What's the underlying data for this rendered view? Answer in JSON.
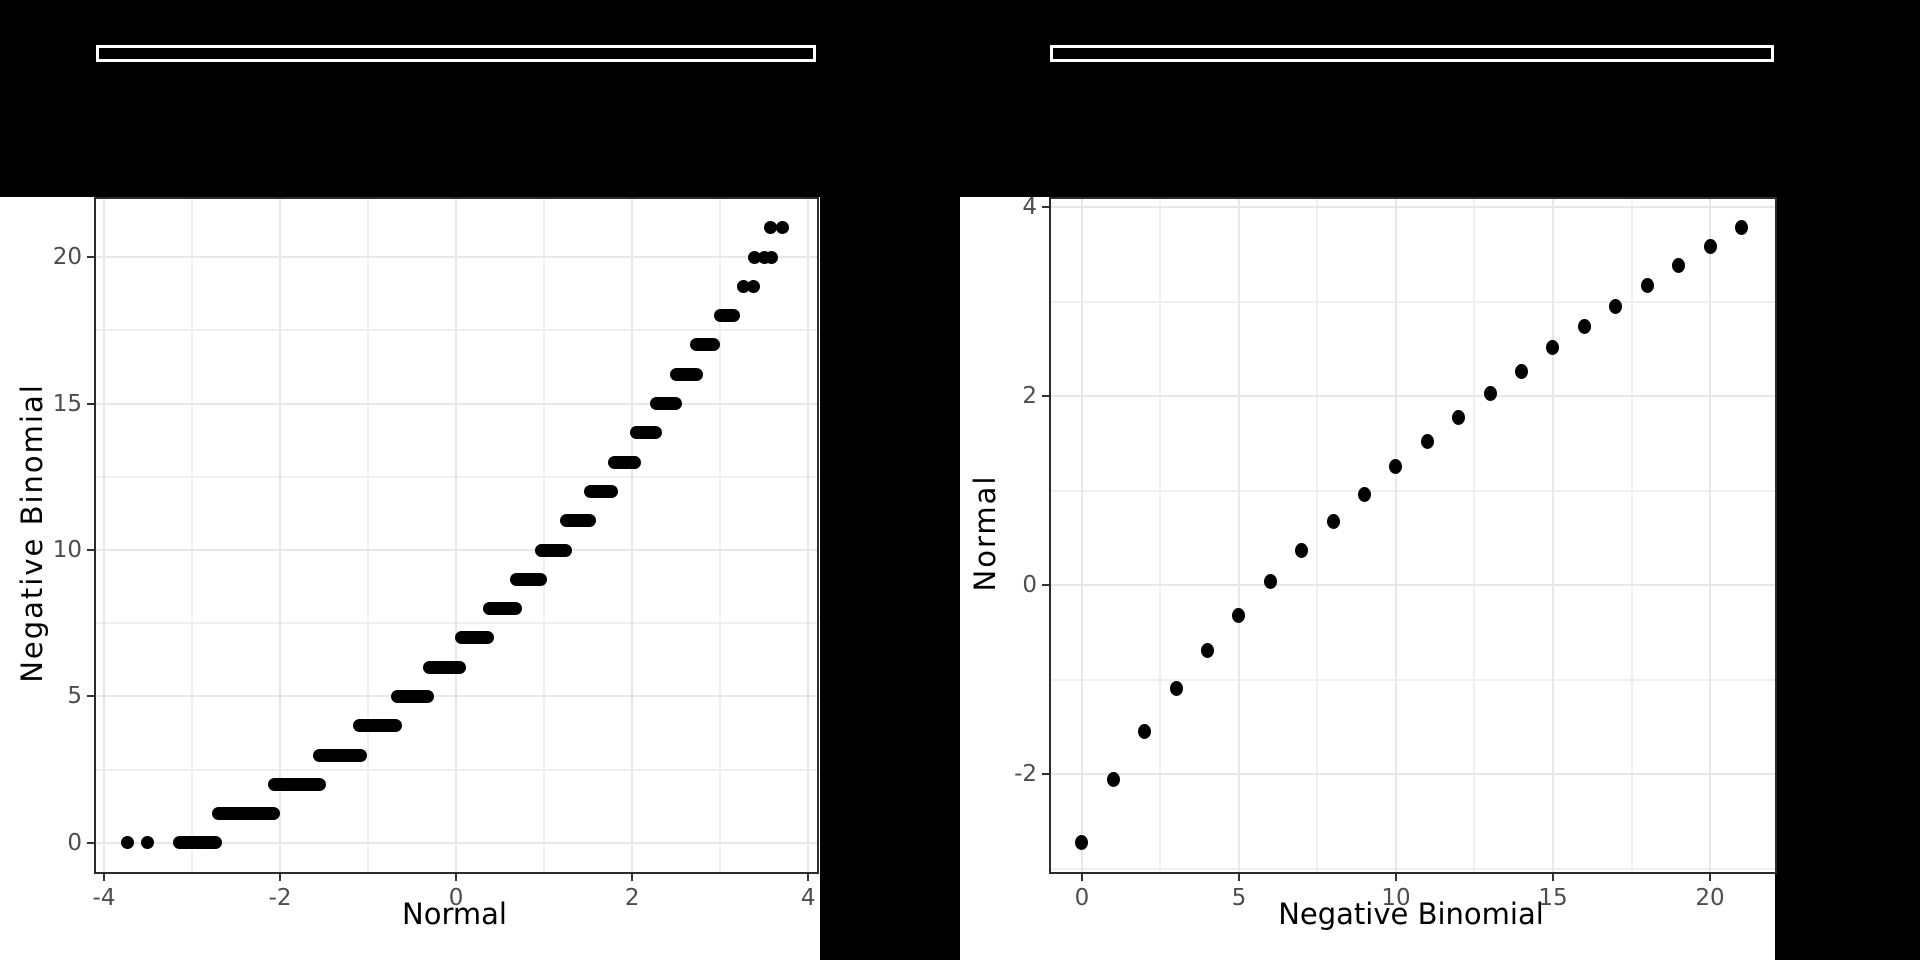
{
  "page": {
    "background": "#000000",
    "description": "Two quantile-quantile plots comparing a Normal distribution and a Negative Binomial distribution, rendered on a black background with an empty white-outlined box above each plot"
  },
  "top_boxes": {
    "left_box_text": "",
    "right_box_text": ""
  },
  "colors": {
    "figure_background": "#ffffff",
    "point_color": "#000000",
    "grid_major": "#e7e7e7",
    "grid_minor": "#efefef",
    "panel_border": "#2b2b2b",
    "tick_mark": "#333333",
    "tick_label": "#4d4d4d",
    "axis_title": "#000000",
    "box_border": "#ffffff"
  },
  "chart_data": [
    {
      "type": "scatter",
      "title": "",
      "xlabel": "Normal",
      "ylabel": "Negative Binomial",
      "legend_position": "none",
      "grid": true,
      "xlim": [
        -4.091,
        4.1
      ],
      "ylim": [
        -0.99,
        21.98
      ],
      "x_ticks": {
        "major": [
          -4,
          -2,
          0,
          2,
          4
        ],
        "labels": [
          "-4",
          "-2",
          "0",
          "2",
          "4"
        ],
        "minor": [
          -3,
          -1,
          1,
          3
        ]
      },
      "y_ticks": {
        "major": [
          0,
          5,
          10,
          15,
          20
        ],
        "labels": [
          "0",
          "5",
          "10",
          "15",
          "20"
        ],
        "minor": [
          2.5,
          7.5,
          12.5,
          17.5
        ]
      },
      "bands_note": "dense runs of overlapping points forming horizontal pills at integer y; x_from/x_to are normal-quantile extents",
      "bands": [
        {
          "y": 0,
          "x_from": -3.22,
          "x_to": -2.66
        },
        {
          "y": 1,
          "x_from": -2.77,
          "x_to": -2.0
        },
        {
          "y": 2,
          "x_from": -2.14,
          "x_to": -1.48
        },
        {
          "y": 3,
          "x_from": -1.63,
          "x_to": -1.01
        },
        {
          "y": 4,
          "x_from": -1.17,
          "x_to": -0.61
        },
        {
          "y": 5,
          "x_from": -0.74,
          "x_to": -0.25
        },
        {
          "y": 6,
          "x_from": -0.38,
          "x_to": 0.11
        },
        {
          "y": 7,
          "x_from": -0.01,
          "x_to": 0.43
        },
        {
          "y": 8,
          "x_from": 0.31,
          "x_to": 0.75
        },
        {
          "y": 9,
          "x_from": 0.61,
          "x_to": 1.03
        },
        {
          "y": 10,
          "x_from": 0.9,
          "x_to": 1.32
        },
        {
          "y": 11,
          "x_from": 1.18,
          "x_to": 1.59
        },
        {
          "y": 12,
          "x_from": 1.45,
          "x_to": 1.84
        },
        {
          "y": 13,
          "x_from": 1.72,
          "x_to": 2.1
        },
        {
          "y": 14,
          "x_from": 1.98,
          "x_to": 2.34
        },
        {
          "y": 15,
          "x_from": 2.2,
          "x_to": 2.57
        },
        {
          "y": 16,
          "x_from": 2.43,
          "x_to": 2.8
        },
        {
          "y": 17,
          "x_from": 2.66,
          "x_to": 3.0
        },
        {
          "y": 18,
          "x_from": 2.93,
          "x_to": 3.22
        }
      ],
      "points": [
        [
          -3.73,
          0
        ],
        [
          -3.51,
          0
        ],
        [
          3.26,
          19
        ],
        [
          3.38,
          19
        ],
        [
          3.39,
          20
        ],
        [
          3.5,
          20
        ],
        [
          3.58,
          20
        ],
        [
          3.57,
          21
        ],
        [
          3.71,
          21
        ]
      ]
    },
    {
      "type": "scatter",
      "title": "",
      "xlabel": "Negative Binomial",
      "ylabel": "Normal",
      "legend_position": "none",
      "grid": true,
      "xlim": [
        -0.987,
        22.07
      ],
      "ylim": [
        -3.037,
        4.085
      ],
      "x_ticks": {
        "major": [
          0,
          5,
          10,
          15,
          20
        ],
        "labels": [
          "0",
          "5",
          "10",
          "15",
          "20"
        ],
        "minor": [
          2.5,
          7.5,
          12.5,
          17.5
        ]
      },
      "y_ticks": {
        "major": [
          -2,
          0,
          2,
          4
        ],
        "labels": [
          "-2",
          "0",
          "2",
          "4"
        ],
        "minor": [
          -3,
          -1,
          1,
          3
        ]
      },
      "bands": [],
      "points": [
        [
          0,
          -2.73
        ],
        [
          1,
          -2.06
        ],
        [
          2,
          -1.55
        ],
        [
          3,
          -1.09
        ],
        [
          4,
          -0.69
        ],
        [
          5,
          -0.32
        ],
        [
          6,
          0.04
        ],
        [
          7,
          0.36
        ],
        [
          8,
          0.67
        ],
        [
          9,
          0.96
        ],
        [
          10,
          1.25
        ],
        [
          11,
          1.52
        ],
        [
          12,
          1.77
        ],
        [
          13,
          2.03
        ],
        [
          14,
          2.26
        ],
        [
          15,
          2.51
        ],
        [
          16,
          2.74
        ],
        [
          17,
          2.95
        ],
        [
          18,
          3.17
        ],
        [
          19,
          3.38
        ],
        [
          20,
          3.58
        ],
        [
          21,
          3.78
        ]
      ]
    }
  ]
}
